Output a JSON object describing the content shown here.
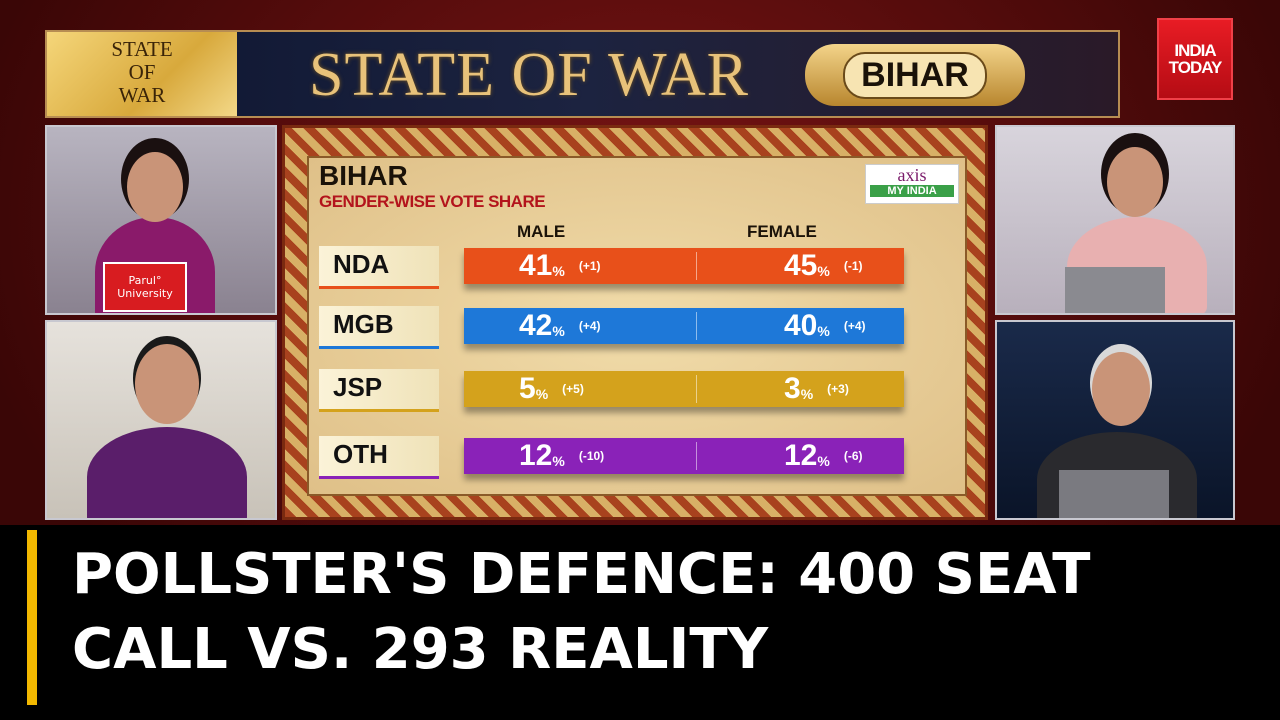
{
  "banner": {
    "side_text": "STATE\nOF\nWAR",
    "title": "STATE OF WAR",
    "badge": "BIHAR"
  },
  "logo": {
    "text": "INDIA\nTODAY",
    "color": "#e81c24"
  },
  "chart": {
    "title": "BIHAR",
    "subtitle": "GENDER-WISE VOTE SHARE",
    "source_logo": {
      "line1": "axis",
      "line2": "MY INDIA"
    },
    "columns": [
      "MALE",
      "FEMALE"
    ],
    "rows": [
      {
        "party": "NDA",
        "color": "#e8501a",
        "male": "41",
        "male_change": "(+1)",
        "female": "45",
        "female_change": "(-1)"
      },
      {
        "party": "MGB",
        "color": "#1e78d8",
        "male": "42",
        "male_change": "(+4)",
        "female": "40",
        "female_change": "(+4)"
      },
      {
        "party": "JSP",
        "color": "#d4a21c",
        "male": "5",
        "male_change": "(+5)",
        "female": "3",
        "female_change": "(+3)"
      },
      {
        "party": "OTH",
        "color": "#8a22b8",
        "male": "12",
        "male_change": "(-10)",
        "female": "12",
        "female_change": "(-6)"
      }
    ],
    "percent_sign": "%"
  },
  "chart_data": {
    "type": "table",
    "title": "BIHAR",
    "subtitle": "GENDER-WISE VOTE SHARE",
    "categories": [
      "NDA",
      "MGB",
      "JSP",
      "OTH"
    ],
    "series": [
      {
        "name": "MALE",
        "values": [
          41,
          42,
          5,
          12
        ],
        "change": [
          1,
          4,
          5,
          -10
        ]
      },
      {
        "name": "FEMALE",
        "values": [
          45,
          40,
          3,
          12
        ],
        "change": [
          -1,
          4,
          3,
          -6
        ]
      }
    ],
    "unit": "%"
  },
  "headline": {
    "line1": "POLLSTER'S DEFENCE: 400 SEAT",
    "line2": "CALL VS. 293 REALITY",
    "accent": "#f2b800"
  },
  "panels": {
    "left_top_desk_sign": "Parul° University"
  }
}
